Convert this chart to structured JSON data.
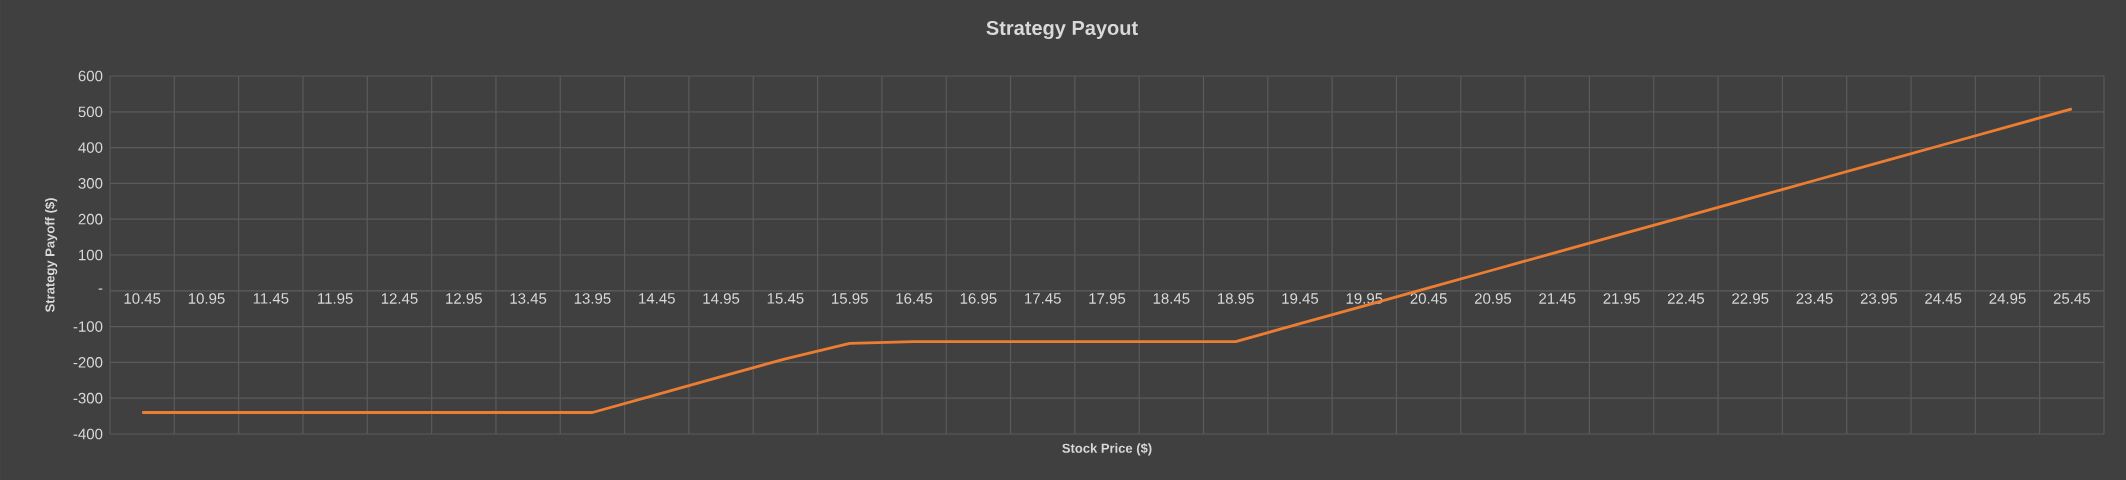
{
  "chart_data": {
    "type": "line",
    "title": "Strategy Payout",
    "xlabel": "Stock Price ($)",
    "ylabel": "Strategy Payoff ($)",
    "categories": [
      "10.45",
      "10.95",
      "11.45",
      "11.95",
      "12.45",
      "12.95",
      "13.45",
      "13.95",
      "14.45",
      "14.95",
      "15.45",
      "15.95",
      "16.45",
      "16.95",
      "17.45",
      "17.95",
      "18.45",
      "18.95",
      "19.45",
      "19.95",
      "20.45",
      "20.95",
      "21.45",
      "21.95",
      "22.45",
      "22.95",
      "23.45",
      "23.95",
      "24.45",
      "24.95",
      "25.45"
    ],
    "series": [
      {
        "color": "#ed7d31",
        "values": [
          -340,
          -340,
          -340,
          -340,
          -340,
          -340,
          -340,
          -340,
          -290,
          -240,
          -190,
          -147,
          -142,
          -142,
          -142,
          -142,
          -142,
          -142,
          -92,
          -42,
          8,
          58,
          108,
          158,
          208,
          258,
          308,
          358,
          408,
          458,
          508
        ]
      }
    ],
    "ylim": [
      -400,
      600
    ],
    "yticks": [
      -400,
      -300,
      -200,
      -100,
      {
        "value": 0,
        "label": "-"
      },
      100,
      200,
      300,
      400,
      500,
      600
    ],
    "grid": true,
    "legend": false,
    "marker": "none",
    "line_style": "solid"
  }
}
